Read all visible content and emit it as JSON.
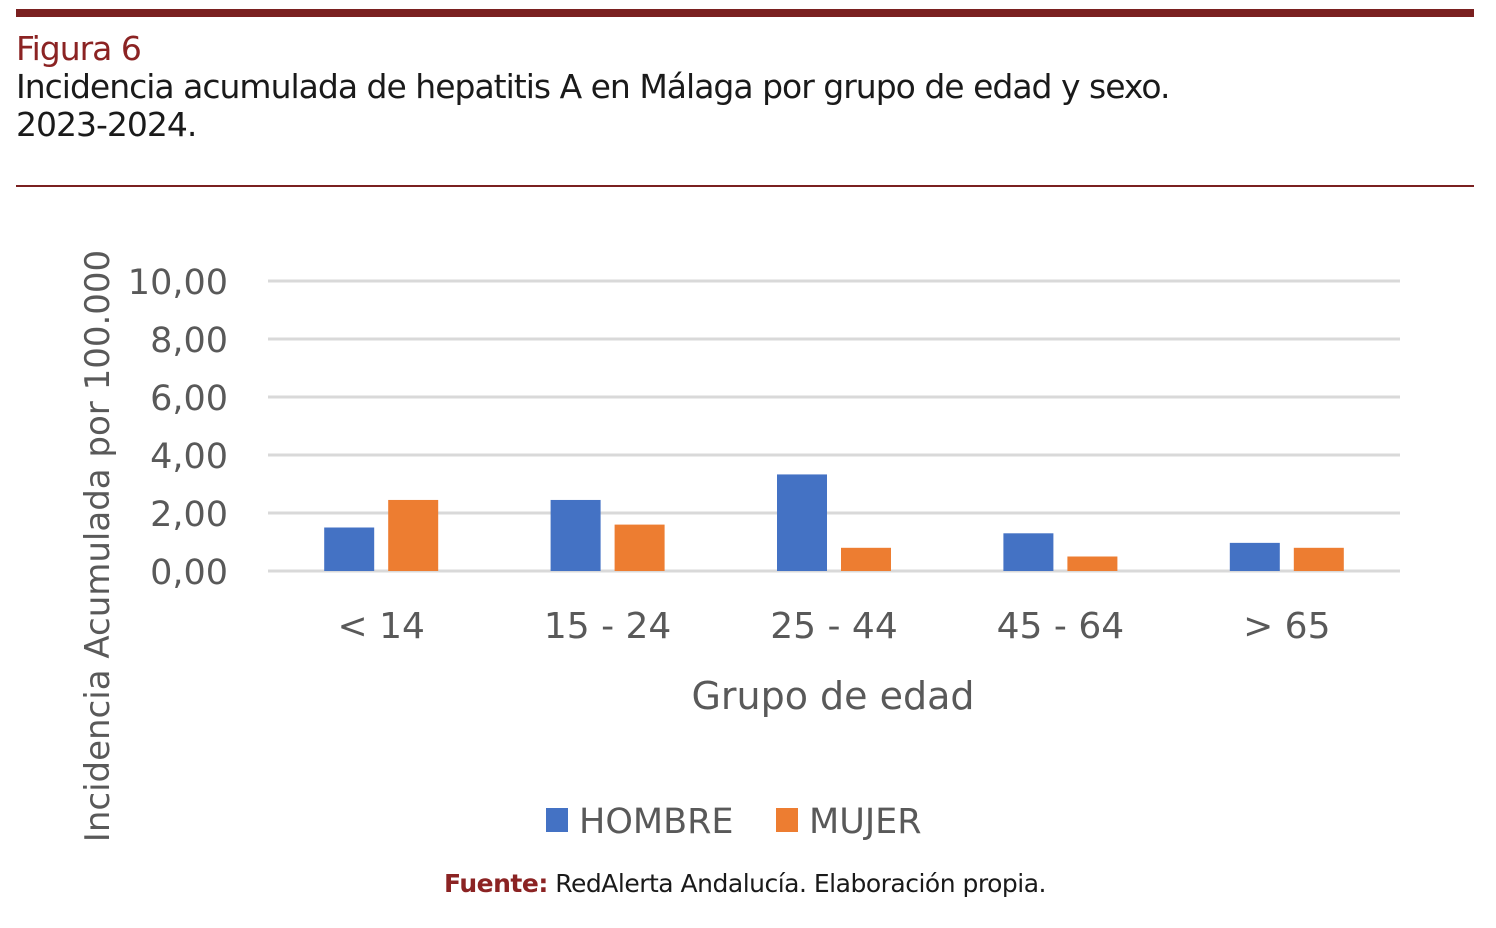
{
  "figure": {
    "label": "Figura 6",
    "title_line1": "Incidencia acumulada de hepatitis A en Málaga por grupo de edad y sexo.",
    "title_line2": "2023-2024."
  },
  "source": {
    "label": "Fuente:",
    "text": "RedAlerta Andalucía. Elaboración propia."
  },
  "colors": {
    "rule": "#7a2020",
    "hombre": "#4472c4",
    "mujer": "#ed7d31",
    "grid": "#d9d9d9",
    "axis_text": "#595959"
  },
  "chart_data": {
    "type": "bar",
    "title": "",
    "xlabel": "Grupo de edad",
    "ylabel": "Incidencia Acumulada por 100.000",
    "categories": [
      "< 14",
      "15 - 24",
      "25 - 44",
      "45 - 64",
      "> 65"
    ],
    "series": [
      {
        "name": "HOMBRE",
        "values": [
          1.5,
          2.45,
          3.33,
          1.3,
          0.97
        ]
      },
      {
        "name": "MUJER",
        "values": [
          2.45,
          1.6,
          0.8,
          0.5,
          0.8
        ]
      }
    ],
    "ylim": [
      0,
      10
    ],
    "yticks": [
      "0,00",
      "2,00",
      "4,00",
      "6,00",
      "8,00",
      "10,00"
    ],
    "grid": true,
    "legend_position": "bottom"
  }
}
